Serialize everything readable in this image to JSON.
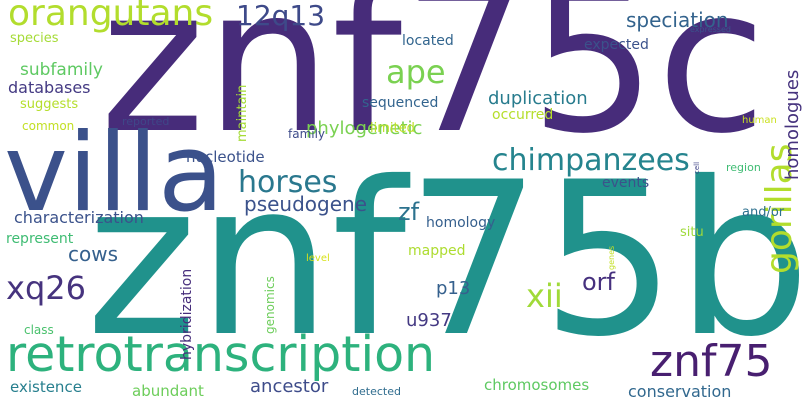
{
  "words": [
    {
      "text": "znf75c",
      "color": "#472c7a"
    },
    {
      "text": "znf75b",
      "color": "#20928c"
    },
    {
      "text": "villa",
      "color": "#3b518b"
    },
    {
      "text": "retrotranscription",
      "color": "#2db27d"
    },
    {
      "text": "orangutans",
      "color": "#b2dd2d"
    },
    {
      "text": "12q13",
      "color": "#3e4a89"
    },
    {
      "text": "ape",
      "color": "#7ad151"
    },
    {
      "text": "speciation",
      "color": "#33638d"
    },
    {
      "text": "gorillas",
      "color": "#b2dd2d"
    },
    {
      "text": "homologues",
      "color": "#46337e"
    },
    {
      "text": "horses",
      "color": "#2a788e"
    },
    {
      "text": "chimpanzees",
      "color": "#25848e"
    },
    {
      "text": "pseudogene",
      "color": "#3b528b"
    },
    {
      "text": "xq26",
      "color": "#46337e"
    },
    {
      "text": "znf75",
      "color": "#481f70"
    },
    {
      "text": "xii",
      "color": "#a0da39"
    },
    {
      "text": "zf",
      "color": "#2c728e"
    },
    {
      "text": "orf",
      "color": "#46307e"
    },
    {
      "text": "cows",
      "color": "#35608d"
    },
    {
      "text": "p13",
      "color": "#35608d"
    },
    {
      "text": "u937",
      "color": "#443983"
    },
    {
      "text": "ancestor",
      "color": "#3e4c8a"
    },
    {
      "text": "duplication",
      "color": "#287c8e"
    },
    {
      "text": "phylogenetic",
      "color": "#7ad151"
    },
    {
      "text": "characterization",
      "color": "#3b528b"
    },
    {
      "text": "conservation",
      "color": "#31688e"
    },
    {
      "text": "chromosomes",
      "color": "#5ec962"
    },
    {
      "text": "existence",
      "color": "#277f8e"
    },
    {
      "text": "abundant",
      "color": "#6ccd5a"
    },
    {
      "text": "nucleotide",
      "color": "#3b528b"
    },
    {
      "text": "subfamily",
      "color": "#5ec962"
    },
    {
      "text": "databases",
      "color": "#443a83"
    },
    {
      "text": "species",
      "color": "#a5db36"
    },
    {
      "text": "suggests",
      "color": "#b5de2b"
    },
    {
      "text": "common",
      "color": "#c2df23"
    },
    {
      "text": "located",
      "color": "#32658e"
    },
    {
      "text": "expected",
      "color": "#3b528b"
    },
    {
      "text": "sequenced",
      "color": "#32648e"
    },
    {
      "text": "occurred",
      "color": "#b5de2b"
    },
    {
      "text": "limited",
      "color": "#bddf26"
    },
    {
      "text": "family",
      "color": "#3e4c8a"
    },
    {
      "text": "reported",
      "color": "#3f4788"
    },
    {
      "text": "maintain",
      "color": "#a5db36"
    },
    {
      "text": "hybridization",
      "color": "#472e7c"
    },
    {
      "text": "genomics",
      "color": "#6ccd5a"
    },
    {
      "text": "represent",
      "color": "#3fbc73"
    },
    {
      "text": "homology",
      "color": "#355f8d"
    },
    {
      "text": "events",
      "color": "#3b528b"
    },
    {
      "text": "and/or",
      "color": "#2d708e"
    },
    {
      "text": "situ",
      "color": "#9fda3a"
    },
    {
      "text": "mapped",
      "color": "#addc30"
    },
    {
      "text": "class",
      "color": "#4ac16d"
    },
    {
      "text": "detected",
      "color": "#2f6c8e"
    },
    {
      "text": "human",
      "color": "#cae11f"
    },
    {
      "text": "region",
      "color": "#3fbc73"
    },
    {
      "text": "level",
      "color": "#d8e219"
    },
    {
      "text": "genes",
      "color": "#c2df23"
    },
    {
      "text": "cell",
      "color": "#404588"
    },
    {
      "text": "expressed",
      "color": "#3a548c"
    }
  ]
}
